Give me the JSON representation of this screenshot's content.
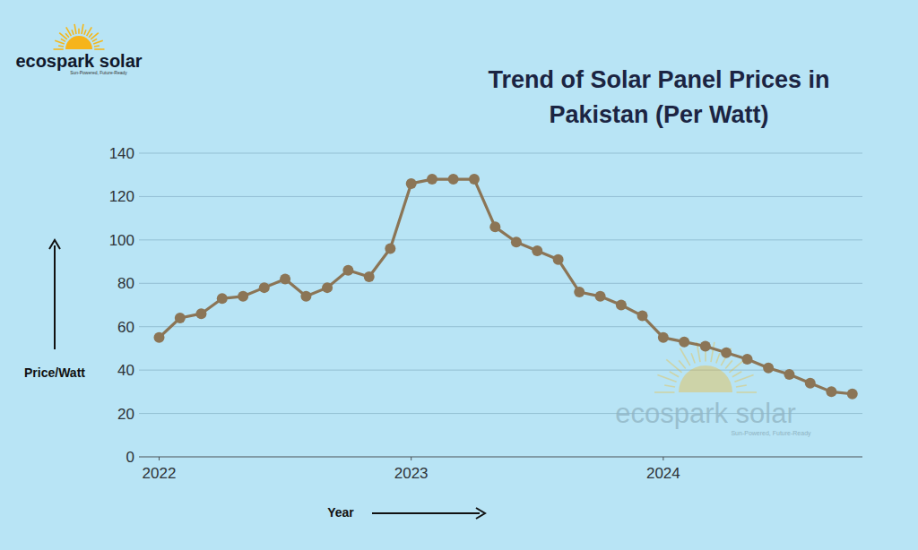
{
  "chart_data": {
    "type": "line",
    "title": "Trend of Solar Panel Prices in Pakistan (Per Watt)",
    "x_label": "Year",
    "y_label": "Price/Watt",
    "annotations": [
      "ecospark solar",
      "Sun-Powered, Future-Ready"
    ],
    "x": [
      2022,
      2022.083,
      2022.167,
      2022.25,
      2022.333,
      2022.417,
      2022.5,
      2022.583,
      2022.667,
      2022.75,
      2022.833,
      2022.917,
      2023,
      2023.083,
      2023.167,
      2023.25,
      2023.333,
      2023.417,
      2023.5,
      2023.583,
      2023.667,
      2023.75,
      2023.833,
      2023.917,
      2024,
      2024.083,
      2024.167,
      2024.25,
      2024.333,
      2024.417,
      2024.5,
      2024.583,
      2024.667,
      2024.75
    ],
    "values": [
      55,
      64,
      66,
      73,
      74,
      78,
      82,
      74,
      78,
      86,
      83,
      96,
      126,
      128,
      128,
      128,
      106,
      99,
      95,
      91,
      76,
      74,
      70,
      65,
      55,
      53,
      51,
      48,
      45,
      41,
      38,
      34,
      30,
      29
    ],
    "color": "#8b7556",
    "marker": "circle",
    "line_style": "solid",
    "xlim": [
      2021.92,
      2024.79
    ],
    "xticks": [
      2022,
      2023,
      2024
    ],
    "ylim": [
      0,
      140
    ],
    "yticks": [
      0,
      20,
      40,
      60,
      80,
      100,
      120,
      140
    ],
    "grid": true
  }
}
